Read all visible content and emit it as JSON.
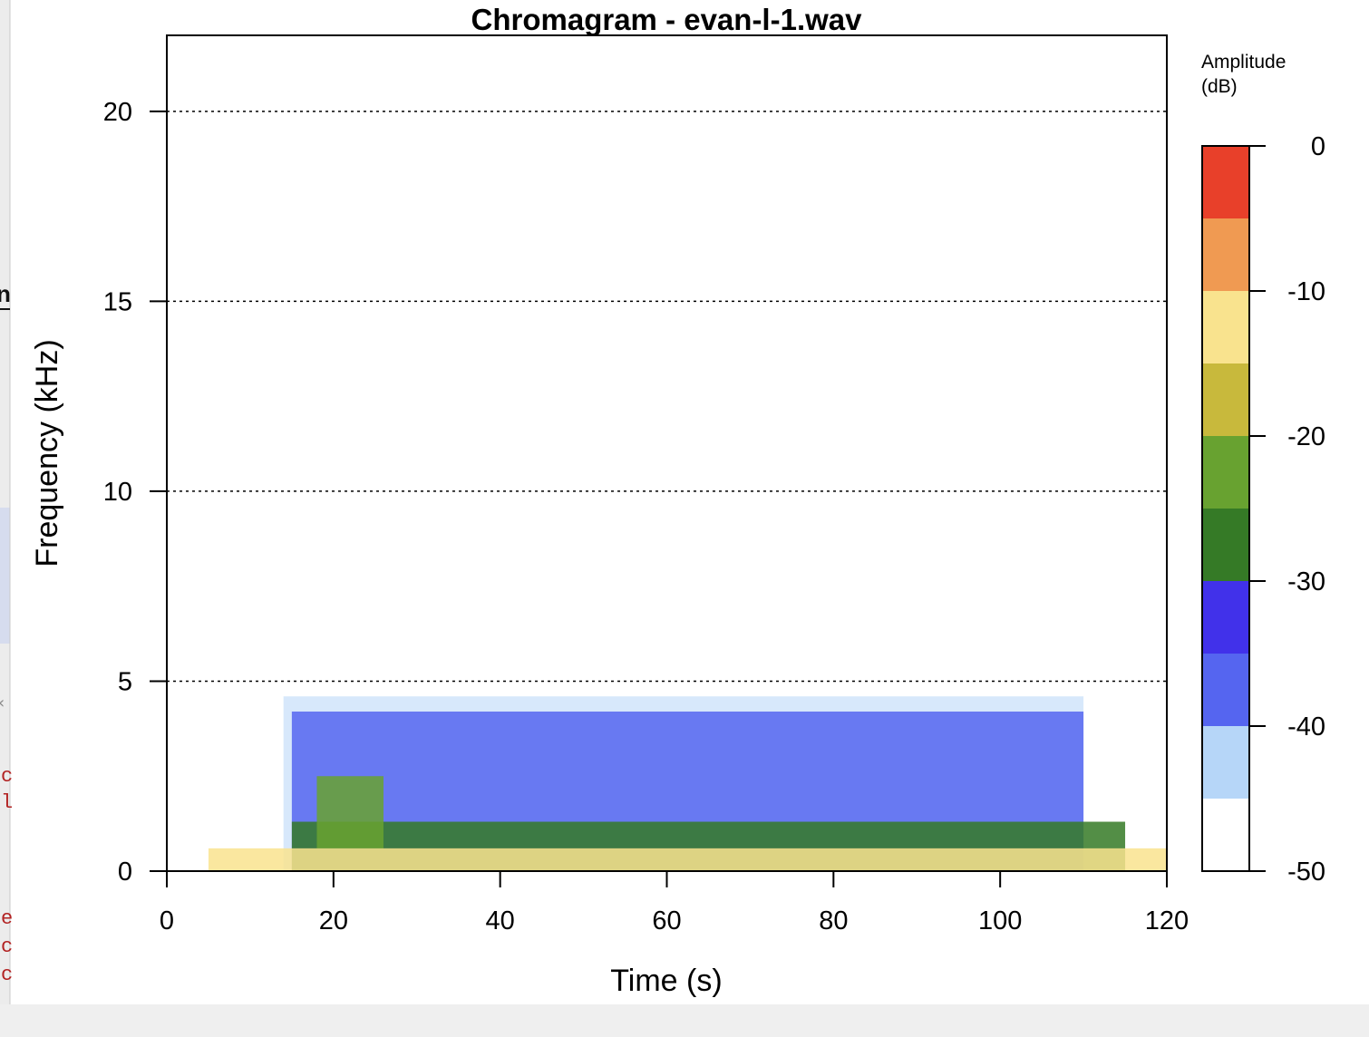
{
  "chart_data": {
    "type": "heatmap",
    "title": "Chromagram - evan-l-1.wav",
    "xlabel": "Time (s)",
    "ylabel": "Frequency (kHz)",
    "xlim": [
      0,
      120
    ],
    "ylim": [
      0,
      22
    ],
    "xticks": [
      0,
      20,
      40,
      60,
      80,
      100,
      120
    ],
    "yticks": [
      0,
      5,
      10,
      15,
      20
    ],
    "grid": "horizontal dotted lines at y ticks",
    "legend": {
      "title": "Amplitude\n(dB)",
      "title_lines": [
        "Amplitude",
        "(dB)"
      ],
      "position": "right",
      "ticks": [
        0,
        -10,
        -20,
        -30,
        -40,
        -50
      ],
      "bins": [
        {
          "from": -5,
          "to": 0,
          "color": "#e8402a"
        },
        {
          "from": -10,
          "to": -5,
          "color": "#f09a52"
        },
        {
          "from": -15,
          "to": -10,
          "color": "#f9e38e"
        },
        {
          "from": -20,
          "to": -15,
          "color": "#c8b93c"
        },
        {
          "from": -25,
          "to": -20,
          "color": "#68a230"
        },
        {
          "from": -30,
          "to": -25,
          "color": "#357a26"
        },
        {
          "from": -35,
          "to": -30,
          "color": "#4131ea"
        },
        {
          "from": -40,
          "to": -35,
          "color": "#5565f0"
        },
        {
          "from": -45,
          "to": -40,
          "color": "#b6d6f8"
        },
        {
          "from": -50,
          "to": -45,
          "color": "#ffffff"
        }
      ]
    },
    "energy_regions": [
      {
        "t0": 5,
        "t1": 120,
        "f0": 0,
        "f1": 0.6,
        "db": -15
      },
      {
        "t0": 18,
        "t1": 26,
        "f0": 0.6,
        "f1": 2.5,
        "db": -22
      },
      {
        "t0": 15,
        "t1": 115,
        "f0": 0,
        "f1": 1.3,
        "db": -30
      },
      {
        "t0": 15,
        "t1": 110,
        "f0": 0,
        "f1": 4.2,
        "db": -38
      },
      {
        "t0": 14,
        "t1": 110,
        "f0": 0,
        "f1": 4.6,
        "db": -43
      }
    ]
  },
  "colors": {
    "plot_frame": "#000000",
    "grid": "#000000",
    "window_bg": "#ffffff",
    "side_pane_bg": "#ececec",
    "bottom_bar_bg": "#efefef",
    "code_text": "#b22222"
  },
  "background_fragments": {
    "left_pane_letters": [
      "n",
      "c",
      "l",
      "e",
      "c",
      "c"
    ]
  }
}
